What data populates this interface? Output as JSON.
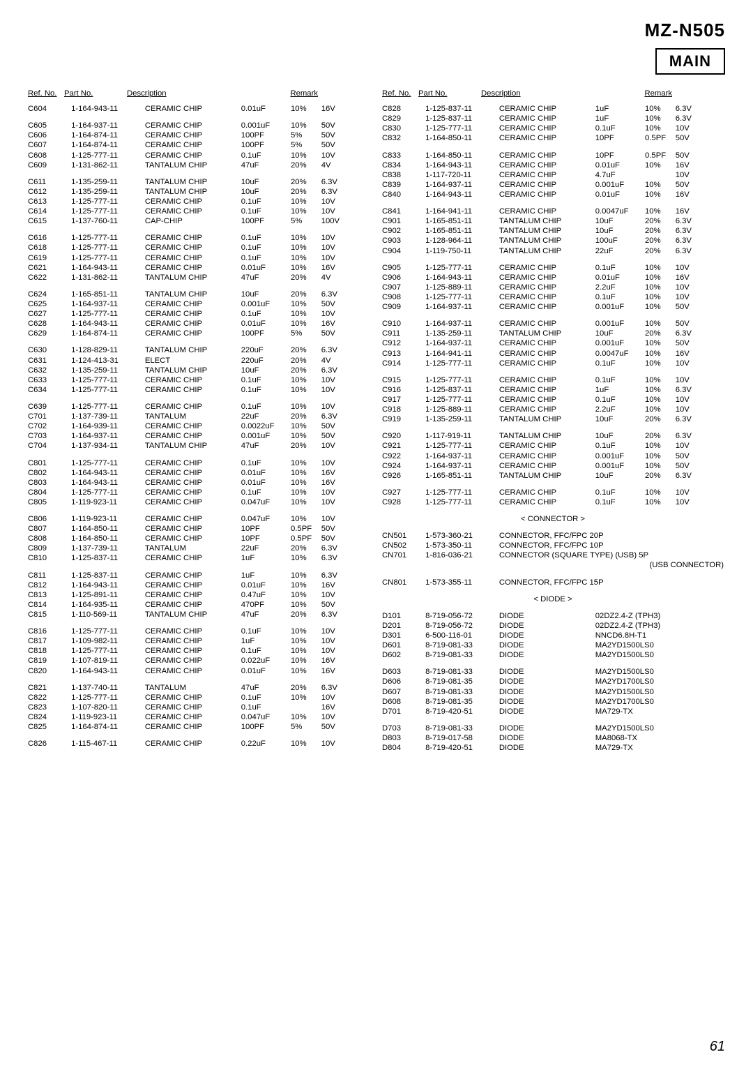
{
  "model": "MZ-N505",
  "main_label": "MAIN",
  "page_number": "61",
  "headers": [
    "Ref. No.",
    "Part No.",
    "Description",
    "Remark"
  ],
  "connector_label": "< CONNECTOR >",
  "diode_label": "< DIODE >",
  "usb_connector_note": "(USB CONNECTOR)",
  "left": [
    [
      "C604",
      "1-164-943-11",
      "CERAMIC CHIP",
      "0.01uF",
      "10%",
      "16V"
    ],
    [],
    [
      "C605",
      "1-164-937-11",
      "CERAMIC CHIP",
      "0.001uF",
      "10%",
      "50V"
    ],
    [
      "C606",
      "1-164-874-11",
      "CERAMIC CHIP",
      "100PF",
      "5%",
      "50V"
    ],
    [
      "C607",
      "1-164-874-11",
      "CERAMIC CHIP",
      "100PF",
      "5%",
      "50V"
    ],
    [
      "C608",
      "1-125-777-11",
      "CERAMIC CHIP",
      "0.1uF",
      "10%",
      "10V"
    ],
    [
      "C609",
      "1-131-862-11",
      "TANTALUM CHIP",
      "47uF",
      "20%",
      "4V"
    ],
    [],
    [
      "C611",
      "1-135-259-11",
      "TANTALUM CHIP",
      "10uF",
      "20%",
      "6.3V"
    ],
    [
      "C612",
      "1-135-259-11",
      "TANTALUM CHIP",
      "10uF",
      "20%",
      "6.3V"
    ],
    [
      "C613",
      "1-125-777-11",
      "CERAMIC CHIP",
      "0.1uF",
      "10%",
      "10V"
    ],
    [
      "C614",
      "1-125-777-11",
      "CERAMIC CHIP",
      "0.1uF",
      "10%",
      "10V"
    ],
    [
      "C615",
      "1-137-760-11",
      "CAP-CHIP",
      "100PF",
      "5%",
      "100V"
    ],
    [],
    [
      "C616",
      "1-125-777-11",
      "CERAMIC CHIP",
      "0.1uF",
      "10%",
      "10V"
    ],
    [
      "C618",
      "1-125-777-11",
      "CERAMIC CHIP",
      "0.1uF",
      "10%",
      "10V"
    ],
    [
      "C619",
      "1-125-777-11",
      "CERAMIC CHIP",
      "0.1uF",
      "10%",
      "10V"
    ],
    [
      "C621",
      "1-164-943-11",
      "CERAMIC CHIP",
      "0.01uF",
      "10%",
      "16V"
    ],
    [
      "C622",
      "1-131-862-11",
      "TANTALUM CHIP",
      "47uF",
      "20%",
      "4V"
    ],
    [],
    [
      "C624",
      "1-165-851-11",
      "TANTALUM CHIP",
      "10uF",
      "20%",
      "6.3V"
    ],
    [
      "C625",
      "1-164-937-11",
      "CERAMIC CHIP",
      "0.001uF",
      "10%",
      "50V"
    ],
    [
      "C627",
      "1-125-777-11",
      "CERAMIC CHIP",
      "0.1uF",
      "10%",
      "10V"
    ],
    [
      "C628",
      "1-164-943-11",
      "CERAMIC CHIP",
      "0.01uF",
      "10%",
      "16V"
    ],
    [
      "C629",
      "1-164-874-11",
      "CERAMIC CHIP",
      "100PF",
      "5%",
      "50V"
    ],
    [],
    [
      "C630",
      "1-128-829-11",
      "TANTALUM CHIP",
      "220uF",
      "20%",
      "6.3V"
    ],
    [
      "C631",
      "1-124-413-31",
      "ELECT",
      "220uF",
      "20%",
      "4V"
    ],
    [
      "C632",
      "1-135-259-11",
      "TANTALUM CHIP",
      "10uF",
      "20%",
      "6.3V"
    ],
    [
      "C633",
      "1-125-777-11",
      "CERAMIC CHIP",
      "0.1uF",
      "10%",
      "10V"
    ],
    [
      "C634",
      "1-125-777-11",
      "CERAMIC CHIP",
      "0.1uF",
      "10%",
      "10V"
    ],
    [],
    [
      "C639",
      "1-125-777-11",
      "CERAMIC CHIP",
      "0.1uF",
      "10%",
      "10V"
    ],
    [
      "C701",
      "1-137-739-11",
      "TANTALUM",
      "22uF",
      "20%",
      "6.3V"
    ],
    [
      "C702",
      "1-164-939-11",
      "CERAMIC CHIP",
      "0.0022uF",
      "10%",
      "50V"
    ],
    [
      "C703",
      "1-164-937-11",
      "CERAMIC CHIP",
      "0.001uF",
      "10%",
      "50V"
    ],
    [
      "C704",
      "1-137-934-11",
      "TANTALUM CHIP",
      "47uF",
      "20%",
      "10V"
    ],
    [],
    [
      "C801",
      "1-125-777-11",
      "CERAMIC CHIP",
      "0.1uF",
      "10%",
      "10V"
    ],
    [
      "C802",
      "1-164-943-11",
      "CERAMIC CHIP",
      "0.01uF",
      "10%",
      "16V"
    ],
    [
      "C803",
      "1-164-943-11",
      "CERAMIC CHIP",
      "0.01uF",
      "10%",
      "16V"
    ],
    [
      "C804",
      "1-125-777-11",
      "CERAMIC CHIP",
      "0.1uF",
      "10%",
      "10V"
    ],
    [
      "C805",
      "1-119-923-11",
      "CERAMIC CHIP",
      "0.047uF",
      "10%",
      "10V"
    ],
    [],
    [
      "C806",
      "1-119-923-11",
      "CERAMIC CHIP",
      "0.047uF",
      "10%",
      "10V"
    ],
    [
      "C807",
      "1-164-850-11",
      "CERAMIC CHIP",
      "10PF",
      "0.5PF",
      "50V"
    ],
    [
      "C808",
      "1-164-850-11",
      "CERAMIC CHIP",
      "10PF",
      "0.5PF",
      "50V"
    ],
    [
      "C809",
      "1-137-739-11",
      "TANTALUM",
      "22uF",
      "20%",
      "6.3V"
    ],
    [
      "C810",
      "1-125-837-11",
      "CERAMIC CHIP",
      "1uF",
      "10%",
      "6.3V"
    ],
    [],
    [
      "C811",
      "1-125-837-11",
      "CERAMIC CHIP",
      "1uF",
      "10%",
      "6.3V"
    ],
    [
      "C812",
      "1-164-943-11",
      "CERAMIC CHIP",
      "0.01uF",
      "10%",
      "16V"
    ],
    [
      "C813",
      "1-125-891-11",
      "CERAMIC CHIP",
      "0.47uF",
      "10%",
      "10V"
    ],
    [
      "C814",
      "1-164-935-11",
      "CERAMIC CHIP",
      "470PF",
      "10%",
      "50V"
    ],
    [
      "C815",
      "1-110-569-11",
      "TANTALUM CHIP",
      "47uF",
      "20%",
      "6.3V"
    ],
    [],
    [
      "C816",
      "1-125-777-11",
      "CERAMIC CHIP",
      "0.1uF",
      "10%",
      "10V"
    ],
    [
      "C817",
      "1-109-982-11",
      "CERAMIC CHIP",
      "1uF",
      "10%",
      "10V"
    ],
    [
      "C818",
      "1-125-777-11",
      "CERAMIC CHIP",
      "0.1uF",
      "10%",
      "10V"
    ],
    [
      "C819",
      "1-107-819-11",
      "CERAMIC CHIP",
      "0.022uF",
      "10%",
      "16V"
    ],
    [
      "C820",
      "1-164-943-11",
      "CERAMIC CHIP",
      "0.01uF",
      "10%",
      "16V"
    ],
    [],
    [
      "C821",
      "1-137-740-11",
      "TANTALUM",
      "47uF",
      "20%",
      "6.3V"
    ],
    [
      "C822",
      "1-125-777-11",
      "CERAMIC CHIP",
      "0.1uF",
      "10%",
      "10V"
    ],
    [
      "C823",
      "1-107-820-11",
      "CERAMIC CHIP",
      "0.1uF",
      "",
      "16V"
    ],
    [
      "C824",
      "1-119-923-11",
      "CERAMIC CHIP",
      "0.047uF",
      "10%",
      "10V"
    ],
    [
      "C825",
      "1-164-874-11",
      "CERAMIC CHIP",
      "100PF",
      "5%",
      "50V"
    ],
    [],
    [
      "C826",
      "1-115-467-11",
      "CERAMIC CHIP",
      "0.22uF",
      "10%",
      "10V"
    ]
  ],
  "right_caps": [
    [
      "C828",
      "1-125-837-11",
      "CERAMIC CHIP",
      "1uF",
      "10%",
      "6.3V"
    ],
    [
      "C829",
      "1-125-837-11",
      "CERAMIC CHIP",
      "1uF",
      "10%",
      "6.3V"
    ],
    [
      "C830",
      "1-125-777-11",
      "CERAMIC CHIP",
      "0.1uF",
      "10%",
      "10V"
    ],
    [
      "C832",
      "1-164-850-11",
      "CERAMIC CHIP",
      "10PF",
      "0.5PF",
      "50V"
    ],
    [],
    [
      "C833",
      "1-164-850-11",
      "CERAMIC CHIP",
      "10PF",
      "0.5PF",
      "50V"
    ],
    [
      "C834",
      "1-164-943-11",
      "CERAMIC CHIP",
      "0.01uF",
      "10%",
      "16V"
    ],
    [
      "C838",
      "1-117-720-11",
      "CERAMIC CHIP",
      "4.7uF",
      "",
      "10V"
    ],
    [
      "C839",
      "1-164-937-11",
      "CERAMIC CHIP",
      "0.001uF",
      "10%",
      "50V"
    ],
    [
      "C840",
      "1-164-943-11",
      "CERAMIC CHIP",
      "0.01uF",
      "10%",
      "16V"
    ],
    [],
    [
      "C841",
      "1-164-941-11",
      "CERAMIC CHIP",
      "0.0047uF",
      "10%",
      "16V"
    ],
    [
      "C901",
      "1-165-851-11",
      "TANTALUM CHIP",
      "10uF",
      "20%",
      "6.3V"
    ],
    [
      "C902",
      "1-165-851-11",
      "TANTALUM CHIP",
      "10uF",
      "20%",
      "6.3V"
    ],
    [
      "C903",
      "1-128-964-11",
      "TANTALUM CHIP",
      "100uF",
      "20%",
      "6.3V"
    ],
    [
      "C904",
      "1-119-750-11",
      "TANTALUM CHIP",
      "22uF",
      "20%",
      "6.3V"
    ],
    [],
    [
      "C905",
      "1-125-777-11",
      "CERAMIC CHIP",
      "0.1uF",
      "10%",
      "10V"
    ],
    [
      "C906",
      "1-164-943-11",
      "CERAMIC CHIP",
      "0.01uF",
      "10%",
      "16V"
    ],
    [
      "C907",
      "1-125-889-11",
      "CERAMIC CHIP",
      "2.2uF",
      "10%",
      "10V"
    ],
    [
      "C908",
      "1-125-777-11",
      "CERAMIC CHIP",
      "0.1uF",
      "10%",
      "10V"
    ],
    [
      "C909",
      "1-164-937-11",
      "CERAMIC CHIP",
      "0.001uF",
      "10%",
      "50V"
    ],
    [],
    [
      "C910",
      "1-164-937-11",
      "CERAMIC CHIP",
      "0.001uF",
      "10%",
      "50V"
    ],
    [
      "C911",
      "1-135-259-11",
      "TANTALUM CHIP",
      "10uF",
      "20%",
      "6.3V"
    ],
    [
      "C912",
      "1-164-937-11",
      "CERAMIC CHIP",
      "0.001uF",
      "10%",
      "50V"
    ],
    [
      "C913",
      "1-164-941-11",
      "CERAMIC CHIP",
      "0.0047uF",
      "10%",
      "16V"
    ],
    [
      "C914",
      "1-125-777-11",
      "CERAMIC CHIP",
      "0.1uF",
      "10%",
      "10V"
    ],
    [],
    [
      "C915",
      "1-125-777-11",
      "CERAMIC CHIP",
      "0.1uF",
      "10%",
      "10V"
    ],
    [
      "C916",
      "1-125-837-11",
      "CERAMIC CHIP",
      "1uF",
      "10%",
      "6.3V"
    ],
    [
      "C917",
      "1-125-777-11",
      "CERAMIC CHIP",
      "0.1uF",
      "10%",
      "10V"
    ],
    [
      "C918",
      "1-125-889-11",
      "CERAMIC CHIP",
      "2.2uF",
      "10%",
      "10V"
    ],
    [
      "C919",
      "1-135-259-11",
      "TANTALUM CHIP",
      "10uF",
      "20%",
      "6.3V"
    ],
    [],
    [
      "C920",
      "1-117-919-11",
      "TANTALUM CHIP",
      "10uF",
      "20%",
      "6.3V"
    ],
    [
      "C921",
      "1-125-777-11",
      "CERAMIC CHIP",
      "0.1uF",
      "10%",
      "10V"
    ],
    [
      "C922",
      "1-164-937-11",
      "CERAMIC CHIP",
      "0.001uF",
      "10%",
      "50V"
    ],
    [
      "C924",
      "1-164-937-11",
      "CERAMIC CHIP",
      "0.001uF",
      "10%",
      "50V"
    ],
    [
      "C926",
      "1-165-851-11",
      "TANTALUM CHIP",
      "10uF",
      "20%",
      "6.3V"
    ],
    [],
    [
      "C927",
      "1-125-777-11",
      "CERAMIC CHIP",
      "0.1uF",
      "10%",
      "10V"
    ],
    [
      "C928",
      "1-125-777-11",
      "CERAMIC CHIP",
      "0.1uF",
      "10%",
      "10V"
    ]
  ],
  "right_connectors": [
    [
      "CN501",
      "1-573-360-21",
      "CONNECTOR, FFC/FPC 20P"
    ],
    [
      "CN502",
      "1-573-350-11",
      "CONNECTOR, FFC/FPC 10P"
    ],
    [
      "CN701",
      "1-816-036-21",
      "CONNECTOR (SQUARE TYPE) (USB) 5P"
    ],
    [],
    [
      "CN801",
      "1-573-355-11",
      "CONNECTOR, FFC/FPC 15P"
    ]
  ],
  "right_diodes": [
    [
      "D101",
      "8-719-056-72",
      "DIODE",
      "02DZ2.4-Z (TPH3)"
    ],
    [
      "D201",
      "8-719-056-72",
      "DIODE",
      "02DZ2.4-Z (TPH3)"
    ],
    [
      "D301",
      "6-500-116-01",
      "DIODE",
      "NNCD6.8H-T1"
    ],
    [
      "D601",
      "8-719-081-33",
      "DIODE",
      "MA2YD1500LS0"
    ],
    [
      "D602",
      "8-719-081-33",
      "DIODE",
      "MA2YD1500LS0"
    ],
    [],
    [
      "D603",
      "8-719-081-33",
      "DIODE",
      "MA2YD1500LS0"
    ],
    [
      "D606",
      "8-719-081-35",
      "DIODE",
      "MA2YD1700LS0"
    ],
    [
      "D607",
      "8-719-081-33",
      "DIODE",
      "MA2YD1500LS0"
    ],
    [
      "D608",
      "8-719-081-35",
      "DIODE",
      "MA2YD1700LS0"
    ],
    [
      "D701",
      "8-719-420-51",
      "DIODE",
      "MA729-TX"
    ],
    [],
    [
      "D703",
      "8-719-081-33",
      "DIODE",
      "MA2YD1500LS0"
    ],
    [
      "D803",
      "8-719-017-58",
      "DIODE",
      "MA8068-TX"
    ],
    [
      "D804",
      "8-719-420-51",
      "DIODE",
      "MA729-TX"
    ]
  ]
}
